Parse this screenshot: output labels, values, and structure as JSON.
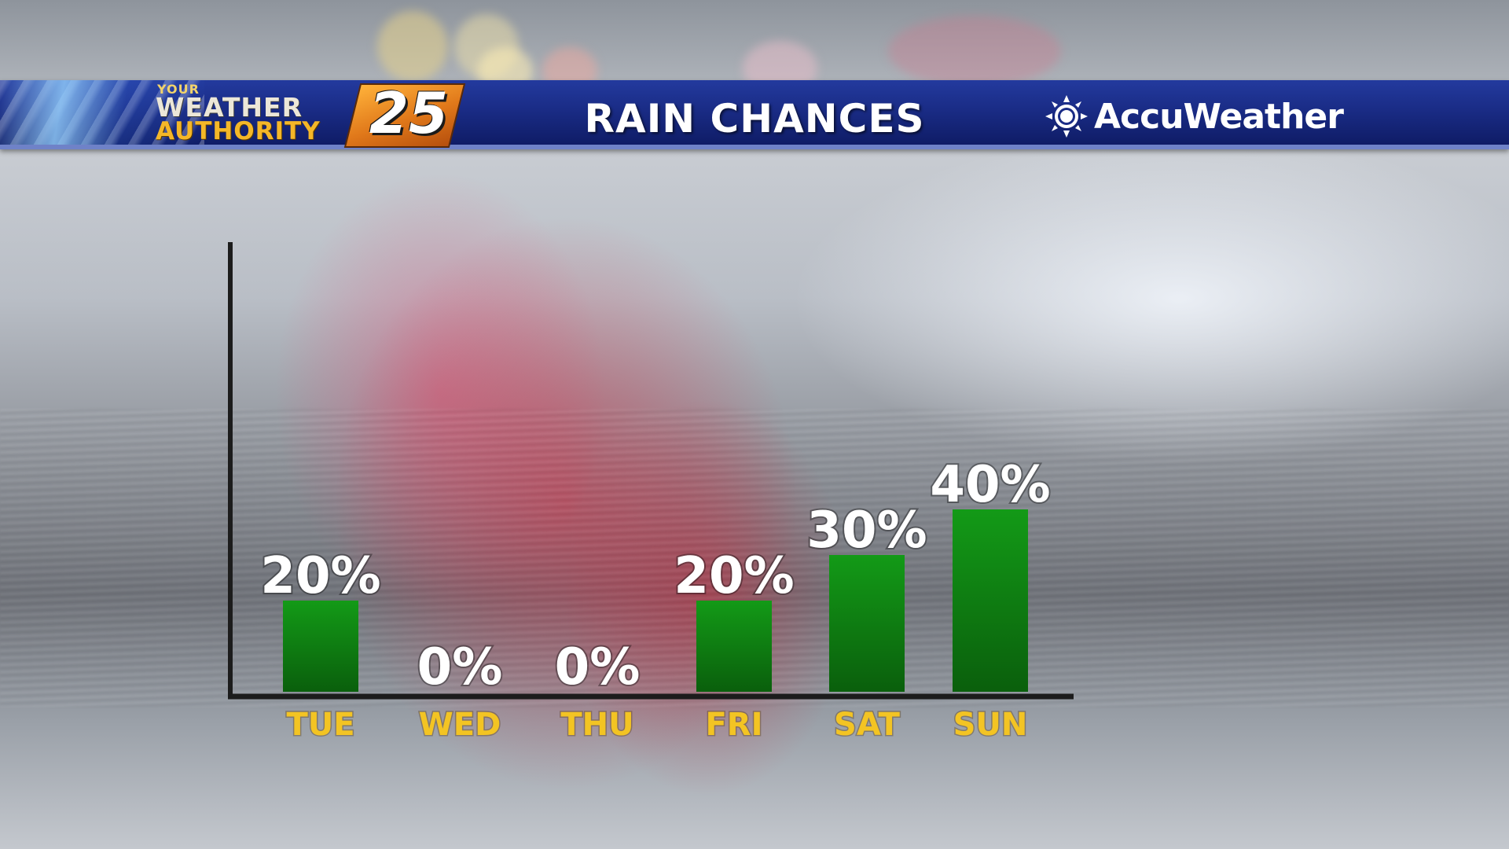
{
  "header": {
    "station_logo": {
      "line1": "YOUR",
      "line2": "WEATHER",
      "line3": "AUTHORITY",
      "number": "25"
    },
    "title": "RAIN CHANCES",
    "partner": "AccuWeather",
    "partner_icon": "sun-icon"
  },
  "colors": {
    "banner": "#1a2c86",
    "bar": "#0f7a12",
    "day_label": "#f3c423",
    "value_label": "#ffffff",
    "axis": "#1c1c1c"
  },
  "chart_data": {
    "type": "bar",
    "title": "RAIN CHANCES",
    "categories": [
      "TUE",
      "WED",
      "THU",
      "FRI",
      "SAT",
      "SUN"
    ],
    "values": [
      20,
      0,
      0,
      20,
      30,
      40
    ],
    "value_labels": [
      "20%",
      "0%",
      "0%",
      "20%",
      "30%",
      "40%"
    ],
    "ylim": [
      0,
      100
    ],
    "grid": false,
    "legend": "none"
  }
}
